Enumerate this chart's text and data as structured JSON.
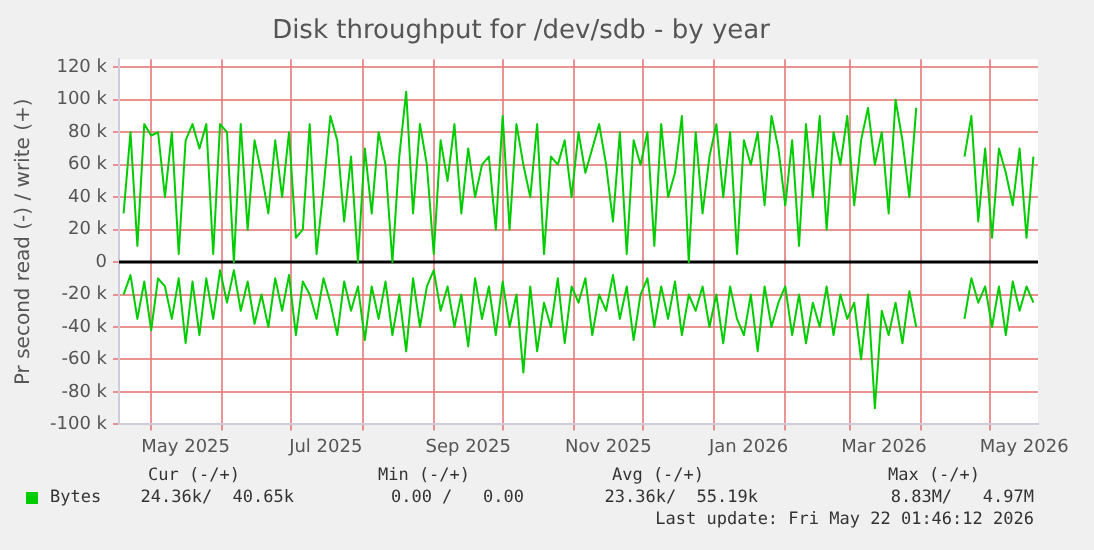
{
  "chart_data": {
    "type": "line",
    "title": "Disk throughput for /dev/sdb - by year",
    "ylabel": "Pr second read (-) / write (+)",
    "x": [
      "2025-04-19",
      "2025-04-22",
      "2025-04-25",
      "2025-04-28",
      "2025-05-01",
      "2025-05-04",
      "2025-05-07",
      "2025-05-10",
      "2025-05-13",
      "2025-05-16",
      "2025-05-19",
      "2025-05-22",
      "2025-05-25",
      "2025-05-28",
      "2025-05-31",
      "2025-06-03",
      "2025-06-06",
      "2025-06-09",
      "2025-06-12",
      "2025-06-15",
      "2025-06-18",
      "2025-06-21",
      "2025-06-24",
      "2025-06-27",
      "2025-06-30",
      "2025-07-03",
      "2025-07-06",
      "2025-07-09",
      "2025-07-12",
      "2025-07-15",
      "2025-07-18",
      "2025-07-21",
      "2025-07-24",
      "2025-07-27",
      "2025-07-30",
      "2025-08-02",
      "2025-08-05",
      "2025-08-08",
      "2025-08-11",
      "2025-08-14",
      "2025-08-17",
      "2025-08-20",
      "2025-08-23",
      "2025-08-26",
      "2025-08-29",
      "2025-09-01",
      "2025-09-04",
      "2025-09-07",
      "2025-09-10",
      "2025-09-13",
      "2025-09-16",
      "2025-09-19",
      "2025-09-22",
      "2025-09-25",
      "2025-09-28",
      "2025-10-01",
      "2025-10-04",
      "2025-10-07",
      "2025-10-10",
      "2025-10-13",
      "2025-10-16",
      "2025-10-19",
      "2025-10-22",
      "2025-10-25",
      "2025-10-28",
      "2025-10-31",
      "2025-11-03",
      "2025-11-06",
      "2025-11-09",
      "2025-11-12",
      "2025-11-15",
      "2025-11-18",
      "2025-11-21",
      "2025-11-24",
      "2025-11-27",
      "2025-11-30",
      "2025-12-03",
      "2025-12-06",
      "2025-12-09",
      "2025-12-12",
      "2025-12-15",
      "2025-12-18",
      "2025-12-21",
      "2025-12-24",
      "2025-12-27",
      "2025-12-30",
      "2026-01-02",
      "2026-01-05",
      "2026-01-08",
      "2026-01-11",
      "2026-01-14",
      "2026-01-17",
      "2026-01-20",
      "2026-01-23",
      "2026-01-26",
      "2026-01-29",
      "2026-02-01",
      "2026-02-04",
      "2026-02-07",
      "2026-02-10",
      "2026-02-13",
      "2026-02-16",
      "2026-02-19",
      "2026-02-22",
      "2026-02-25",
      "2026-02-28",
      "2026-03-03",
      "2026-03-06",
      "2026-03-09",
      "2026-03-12",
      "2026-03-15",
      "2026-03-18",
      "2026-03-21",
      "2026-03-24",
      "2026-03-27",
      "2026-03-30",
      "2026-04-02",
      "2026-04-05",
      "2026-04-08",
      "2026-04-11",
      "2026-04-14",
      "2026-04-17",
      "2026-04-20",
      "2026-04-23",
      "2026-04-26",
      "2026-04-29",
      "2026-05-02",
      "2026-05-05",
      "2026-05-08",
      "2026-05-11",
      "2026-05-14",
      "2026-05-17",
      "2026-05-20"
    ],
    "series": [
      {
        "name": "Bytes",
        "color": "#00cc00",
        "values": [
          30000,
          80000,
          10000,
          85000,
          78000,
          80000,
          40000,
          80000,
          5000,
          75000,
          85000,
          70000,
          85000,
          5000,
          85000,
          80000,
          0,
          85000,
          20000,
          75000,
          55000,
          30000,
          75000,
          40000,
          80000,
          15000,
          20000,
          85000,
          5000,
          45000,
          90000,
          75000,
          25000,
          65000,
          0,
          70000,
          30000,
          80000,
          60000,
          0,
          65000,
          105000,
          30000,
          85000,
          60000,
          5000,
          75000,
          50000,
          85000,
          30000,
          70000,
          40000,
          60000,
          65000,
          20000,
          90000,
          20000,
          85000,
          60000,
          40000,
          85000,
          5000,
          65000,
          60000,
          75000,
          40000,
          80000,
          55000,
          70000,
          85000,
          60000,
          25000,
          80000,
          5000,
          75000,
          60000,
          80000,
          10000,
          85000,
          40000,
          55000,
          90000,
          0,
          80000,
          30000,
          65000,
          85000,
          40000,
          80000,
          5000,
          75000,
          60000,
          80000,
          35000,
          90000,
          70000,
          35000,
          75000,
          10000,
          85000,
          40000,
          90000,
          20000,
          80000,
          60000,
          90000,
          35000,
          75000,
          95000,
          60000,
          80000,
          30000,
          100000,
          75000,
          40000,
          95000,
          null,
          null,
          null,
          null,
          null,
          null,
          65000,
          90000,
          25000,
          70000,
          15000,
          70000,
          55000,
          35000,
          70000,
          15000,
          65000
        ]
      },
      {
        "color": "#00cc00",
        "values": [
          -20000,
          -8000,
          -35000,
          -12000,
          -42000,
          -10000,
          -15000,
          -35000,
          -10000,
          -50000,
          -12000,
          -45000,
          -10000,
          -35000,
          -5000,
          -25000,
          -5000,
          -30000,
          -12000,
          -38000,
          -20000,
          -40000,
          -10000,
          -30000,
          -8000,
          -45000,
          -12000,
          -20000,
          -35000,
          -10000,
          -25000,
          -45000,
          -12000,
          -30000,
          -15000,
          -48000,
          -15000,
          -35000,
          -12000,
          -45000,
          -20000,
          -55000,
          -10000,
          -40000,
          -15000,
          -5000,
          -30000,
          -15000,
          -40000,
          -20000,
          -52000,
          -10000,
          -35000,
          -15000,
          -45000,
          -12000,
          -40000,
          -20000,
          -68000,
          -15000,
          -55000,
          -25000,
          -40000,
          -10000,
          -50000,
          -15000,
          -25000,
          -10000,
          -45000,
          -20000,
          -30000,
          -8000,
          -35000,
          -15000,
          -48000,
          -20000,
          -10000,
          -40000,
          -15000,
          -35000,
          -12000,
          -45000,
          -20000,
          -30000,
          -15000,
          -40000,
          -20000,
          -50000,
          -15000,
          -35000,
          -45000,
          -20000,
          -55000,
          -15000,
          -40000,
          -25000,
          -15000,
          -45000,
          -20000,
          -50000,
          -25000,
          -40000,
          -15000,
          -45000,
          -20000,
          -35000,
          -25000,
          -60000,
          -20000,
          -90000,
          -30000,
          -45000,
          -25000,
          -50000,
          -18000,
          -40000,
          null,
          null,
          null,
          null,
          null,
          null,
          -35000,
          -10000,
          -25000,
          -15000,
          -40000,
          -15000,
          -45000,
          -12000,
          -30000,
          -15000,
          -25000
        ]
      }
    ],
    "xlim": [
      "2025-04-17",
      "2026-05-22"
    ],
    "xticks": [
      {
        "value": "2025-05-01",
        "label": null
      },
      {
        "value": "2025-05-16",
        "label": "May 2025"
      },
      {
        "value": "2025-06-01",
        "label": null
      },
      {
        "value": "2025-07-01",
        "label": null
      },
      {
        "value": "2025-07-16",
        "label": "Jul 2025"
      },
      {
        "value": "2025-08-01",
        "label": null
      },
      {
        "value": "2025-09-01",
        "label": null
      },
      {
        "value": "2025-09-16",
        "label": "Sep 2025"
      },
      {
        "value": "2025-10-01",
        "label": null
      },
      {
        "value": "2025-11-01",
        "label": null
      },
      {
        "value": "2025-11-16",
        "label": "Nov 2025"
      },
      {
        "value": "2025-12-01",
        "label": null
      },
      {
        "value": "2026-01-01",
        "label": null
      },
      {
        "value": "2026-01-16",
        "label": "Jan 2026"
      },
      {
        "value": "2026-02-01",
        "label": null
      },
      {
        "value": "2026-03-01",
        "label": null
      },
      {
        "value": "2026-03-16",
        "label": "Mar 2026"
      },
      {
        "value": "2026-04-01",
        "label": null
      },
      {
        "value": "2026-05-01",
        "label": null
      },
      {
        "value": "2026-05-16",
        "label": "May 2026"
      }
    ],
    "ylim": [
      -100000,
      125000
    ],
    "yticks": [
      {
        "value": -100000,
        "label": "-100 k"
      },
      {
        "value": -80000,
        "label": "-80 k"
      },
      {
        "value": -60000,
        "label": "-60 k"
      },
      {
        "value": -40000,
        "label": "-40 k"
      },
      {
        "value": -20000,
        "label": "-20 k"
      },
      {
        "value": 0,
        "label": "0"
      },
      {
        "value": 20000,
        "label": "20 k"
      },
      {
        "value": 40000,
        "label": "40 k"
      },
      {
        "value": 60000,
        "label": "60 k"
      },
      {
        "value": 80000,
        "label": "80 k"
      },
      {
        "value": 100000,
        "label": "100 k"
      },
      {
        "value": 120000,
        "label": "120 k"
      }
    ],
    "grid": true,
    "legend": "bottom",
    "marker": "none",
    "line_style": "solid",
    "ref_lines": [
      {
        "axis": "y",
        "value": 0,
        "color": "#000000"
      }
    ],
    "annotations": [
      "Cur (-/+)",
      "Min (-/+)",
      "Avg (-/+)",
      "Max (-/+)",
      "24.36k/  40.65k",
      "0.00 /   0.00",
      "23.36k/  55.19k",
      "8.83M/   4.97M",
      "Last update: Fri May 22 01:46:12 2026"
    ]
  }
}
